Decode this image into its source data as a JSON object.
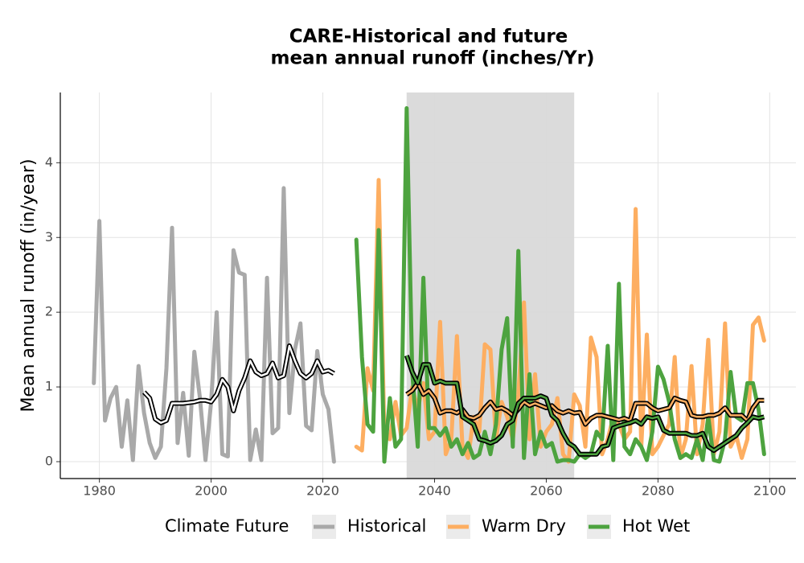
{
  "chart_data": {
    "type": "line",
    "title": [
      "CARE-Historical and future",
      "mean annual runoff (inches/Yr)"
    ],
    "y_label": "Mean annual runoff (in/year)",
    "legend_title": "Climate Future",
    "legend_position": "bottom",
    "grid": true,
    "xlim": [
      1973,
      2104.7
    ],
    "ylim": [
      -0.226,
      4.94
    ],
    "xticks": [
      1980,
      2000,
      2020,
      2040,
      2060,
      2080,
      2100
    ],
    "yticks": [
      0,
      1,
      2,
      3,
      4
    ],
    "shade": [
      2035,
      2065
    ],
    "shade_color": "#d9d9d9",
    "smooth_outline": "#000000",
    "series": [
      {
        "name": "Historical",
        "color": "#a9a9a9",
        "x": [
          1979,
          1980,
          1981,
          1982,
          1983,
          1984,
          1985,
          1986,
          1987,
          1988,
          1989,
          1990,
          1991,
          1992,
          1993,
          1994,
          1995,
          1996,
          1997,
          1998,
          1999,
          2000,
          2001,
          2002,
          2003,
          2004,
          2005,
          2006,
          2007,
          2008,
          2009,
          2010,
          2011,
          2012,
          2013,
          2014,
          2015,
          2016,
          2017,
          2018,
          2019,
          2020,
          2021,
          2022
        ],
        "values": [
          1.05,
          3.22,
          0.55,
          0.85,
          1.0,
          0.2,
          0.82,
          0.02,
          1.28,
          0.65,
          0.25,
          0.05,
          0.2,
          1.25,
          3.13,
          0.25,
          0.92,
          0.08,
          1.47,
          0.85,
          0.02,
          0.8,
          2.0,
          0.1,
          0.07,
          2.83,
          2.53,
          2.5,
          0.02,
          0.43,
          0.02,
          2.46,
          0.38,
          0.45,
          3.66,
          0.65,
          1.5,
          1.85,
          0.48,
          0.42,
          1.48,
          0.9,
          0.7,
          0.0
        ],
        "smooth_x": [
          1988,
          1989,
          1990,
          1991,
          1992,
          1993,
          1994,
          1995,
          1996,
          1997,
          1998,
          1999,
          2000,
          2001,
          2002,
          2003,
          2004,
          2005,
          2006,
          2007,
          2008,
          2009,
          2010,
          2011,
          2012,
          2013,
          2014,
          2015,
          2016,
          2017,
          2018,
          2019,
          2020,
          2021,
          2022
        ],
        "smooth_values": [
          0.93,
          0.85,
          0.57,
          0.52,
          0.55,
          0.78,
          0.78,
          0.78,
          0.79,
          0.8,
          0.82,
          0.82,
          0.8,
          0.9,
          1.1,
          1.0,
          0.68,
          0.95,
          1.12,
          1.35,
          1.2,
          1.15,
          1.18,
          1.32,
          1.12,
          1.15,
          1.55,
          1.35,
          1.18,
          1.12,
          1.18,
          1.35,
          1.2,
          1.22,
          1.18
        ]
      },
      {
        "name": "Warm Dry",
        "color": "#fdae61",
        "x": [
          2026,
          2027,
          2028,
          2029,
          2030,
          2031,
          2032,
          2033,
          2034,
          2035,
          2036,
          2037,
          2038,
          2039,
          2040,
          2041,
          2042,
          2043,
          2044,
          2045,
          2046,
          2047,
          2048,
          2049,
          2050,
          2051,
          2052,
          2053,
          2054,
          2055,
          2056,
          2057,
          2058,
          2059,
          2060,
          2061,
          2062,
          2063,
          2064,
          2065,
          2066,
          2067,
          2068,
          2069,
          2070,
          2071,
          2072,
          2073,
          2074,
          2075,
          2076,
          2077,
          2078,
          2079,
          2080,
          2081,
          2082,
          2083,
          2084,
          2085,
          2086,
          2087,
          2088,
          2089,
          2090,
          2091,
          2092,
          2093,
          2094,
          2095,
          2096,
          2097,
          2098,
          2099
        ],
        "values": [
          0.2,
          0.15,
          1.25,
          0.95,
          3.77,
          0.4,
          0.3,
          0.8,
          0.35,
          0.45,
          1.0,
          0.7,
          1.05,
          0.3,
          0.4,
          1.87,
          0.1,
          0.3,
          1.68,
          0.2,
          0.05,
          0.6,
          0.4,
          1.57,
          1.5,
          0.3,
          0.8,
          0.6,
          0.3,
          0.9,
          2.13,
          0.3,
          1.17,
          0.2,
          0.4,
          0.5,
          0.85,
          0.1,
          0.0,
          0.9,
          0.75,
          0.2,
          1.66,
          1.4,
          0.1,
          0.3,
          0.6,
          0.5,
          0.3,
          0.4,
          3.38,
          0.2,
          1.7,
          0.1,
          0.2,
          0.35,
          0.5,
          1.4,
          0.05,
          0.3,
          1.28,
          0.1,
          0.5,
          1.63,
          0.1,
          0.4,
          1.85,
          0.2,
          0.35,
          0.05,
          0.3,
          1.83,
          1.93,
          1.62
        ],
        "smooth_x": [
          2035,
          2036,
          2037,
          2038,
          2039,
          2040,
          2041,
          2042,
          2043,
          2044,
          2045,
          2046,
          2047,
          2048,
          2049,
          2050,
          2051,
          2052,
          2053,
          2054,
          2055,
          2056,
          2057,
          2058,
          2059,
          2060,
          2061,
          2062,
          2063,
          2064,
          2065,
          2066,
          2067,
          2068,
          2069,
          2070,
          2071,
          2072,
          2073,
          2074,
          2075,
          2076,
          2077,
          2078,
          2079,
          2080,
          2081,
          2082,
          2083,
          2084,
          2085,
          2086,
          2087,
          2088,
          2089,
          2090,
          2091,
          2092,
          2093,
          2094,
          2095,
          2096,
          2097,
          2098,
          2099
        ],
        "smooth_values": [
          0.9,
          0.95,
          1.05,
          0.9,
          0.95,
          0.85,
          0.65,
          0.68,
          0.68,
          0.65,
          0.7,
          0.6,
          0.58,
          0.62,
          0.72,
          0.8,
          0.7,
          0.72,
          0.68,
          0.62,
          0.7,
          0.8,
          0.75,
          0.78,
          0.75,
          0.72,
          0.75,
          0.68,
          0.65,
          0.68,
          0.65,
          0.66,
          0.5,
          0.58,
          0.62,
          0.62,
          0.6,
          0.58,
          0.56,
          0.58,
          0.55,
          0.78,
          0.78,
          0.78,
          0.72,
          0.68,
          0.7,
          0.72,
          0.85,
          0.82,
          0.8,
          0.62,
          0.6,
          0.6,
          0.62,
          0.62,
          0.65,
          0.72,
          0.62,
          0.62,
          0.62,
          0.55,
          0.72,
          0.82,
          0.82
        ]
      },
      {
        "name": "Hot Wet",
        "color": "#4da33f",
        "x": [
          2026,
          2027,
          2028,
          2029,
          2030,
          2031,
          2032,
          2033,
          2034,
          2035,
          2036,
          2037,
          2038,
          2039,
          2040,
          2041,
          2042,
          2043,
          2044,
          2045,
          2046,
          2047,
          2048,
          2049,
          2050,
          2051,
          2052,
          2053,
          2054,
          2055,
          2056,
          2057,
          2058,
          2059,
          2060,
          2061,
          2062,
          2063,
          2064,
          2065,
          2066,
          2067,
          2068,
          2069,
          2070,
          2071,
          2072,
          2073,
          2074,
          2075,
          2076,
          2077,
          2078,
          2079,
          2080,
          2081,
          2082,
          2083,
          2084,
          2085,
          2086,
          2087,
          2088,
          2089,
          2090,
          2091,
          2092,
          2093,
          2094,
          2095,
          2096,
          2097,
          2098,
          2099
        ],
        "values": [
          2.97,
          1.4,
          0.5,
          0.4,
          3.1,
          0.0,
          0.85,
          0.2,
          0.3,
          4.73,
          1.2,
          0.2,
          2.46,
          0.45,
          0.45,
          0.35,
          0.45,
          0.2,
          0.3,
          0.1,
          0.25,
          0.05,
          0.1,
          0.4,
          0.1,
          0.5,
          1.5,
          1.92,
          0.2,
          2.82,
          0.05,
          1.17,
          0.1,
          0.4,
          0.2,
          0.25,
          0.0,
          0.02,
          0.02,
          0.0,
          0.1,
          0.05,
          0.1,
          0.4,
          0.3,
          1.55,
          0.02,
          2.38,
          0.2,
          0.1,
          0.3,
          0.2,
          0.02,
          0.4,
          1.27,
          1.1,
          0.8,
          0.3,
          0.05,
          0.1,
          0.05,
          0.3,
          0.02,
          0.6,
          0.02,
          0.0,
          0.3,
          1.2,
          0.6,
          0.55,
          1.05,
          1.05,
          0.7,
          0.1
        ],
        "smooth_x": [
          2035,
          2036,
          2037,
          2038,
          2039,
          2040,
          2041,
          2042,
          2043,
          2044,
          2045,
          2046,
          2047,
          2048,
          2049,
          2050,
          2051,
          2052,
          2053,
          2054,
          2055,
          2056,
          2057,
          2058,
          2059,
          2060,
          2061,
          2062,
          2063,
          2064,
          2065,
          2066,
          2067,
          2068,
          2069,
          2070,
          2071,
          2072,
          2073,
          2074,
          2075,
          2076,
          2077,
          2078,
          2079,
          2080,
          2081,
          2082,
          2083,
          2084,
          2085,
          2086,
          2087,
          2088,
          2089,
          2090,
          2091,
          2092,
          2093,
          2094,
          2095,
          2096,
          2097,
          2098,
          2099
        ],
        "smooth_values": [
          1.42,
          1.2,
          1.05,
          1.3,
          1.3,
          1.05,
          1.08,
          1.05,
          1.05,
          1.05,
          0.6,
          0.55,
          0.5,
          0.3,
          0.28,
          0.25,
          0.28,
          0.35,
          0.5,
          0.55,
          0.78,
          0.85,
          0.85,
          0.85,
          0.88,
          0.85,
          0.62,
          0.55,
          0.38,
          0.25,
          0.2,
          0.1,
          0.1,
          0.1,
          0.1,
          0.2,
          0.22,
          0.45,
          0.48,
          0.5,
          0.52,
          0.55,
          0.5,
          0.6,
          0.58,
          0.6,
          0.42,
          0.38,
          0.38,
          0.38,
          0.38,
          0.35,
          0.35,
          0.38,
          0.2,
          0.15,
          0.2,
          0.25,
          0.3,
          0.35,
          0.45,
          0.52,
          0.6,
          0.58,
          0.6
        ]
      }
    ]
  }
}
